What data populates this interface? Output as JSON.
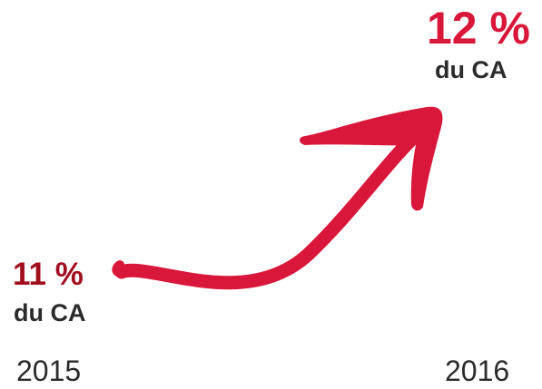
{
  "colors": {
    "start_value": "#a10f1e",
    "end_value": "#d8173a",
    "arrow": "#d8173a",
    "text": "#2b2b2b"
  },
  "start": {
    "value": "11 %",
    "unit": "du CA",
    "year": "2015"
  },
  "end": {
    "value": "12 %",
    "unit": "du CA",
    "year": "2016"
  },
  "arrow_icon": "upward-curved-arrow-icon"
}
